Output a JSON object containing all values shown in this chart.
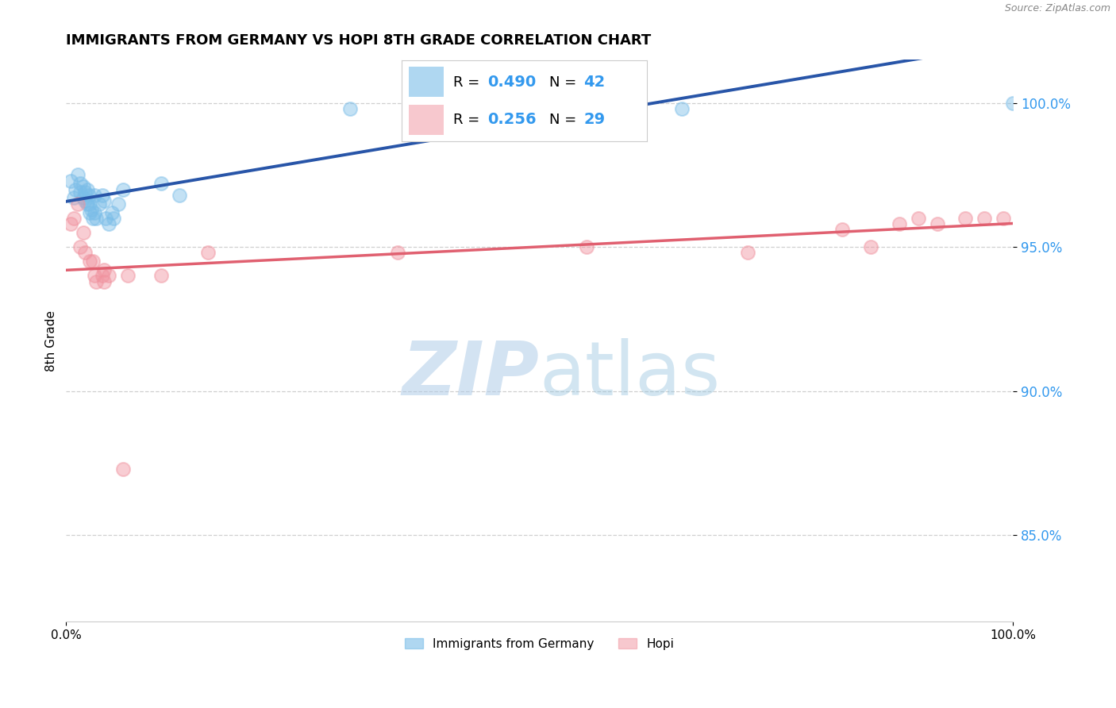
{
  "title": "IMMIGRANTS FROM GERMANY VS HOPI 8TH GRADE CORRELATION CHART",
  "source": "Source: ZipAtlas.com",
  "ylabel": "8th Grade",
  "ytick_labels": [
    "85.0%",
    "90.0%",
    "95.0%",
    "100.0%"
  ],
  "ytick_values": [
    0.85,
    0.9,
    0.95,
    1.0
  ],
  "xtick_labels": [
    "0.0%",
    "100.0%"
  ],
  "xtick_values": [
    0.0,
    1.0
  ],
  "xlim": [
    0.0,
    1.0
  ],
  "ylim": [
    0.82,
    1.015
  ],
  "blue_color": "#7ABDE8",
  "pink_color": "#F0929E",
  "blue_line_color": "#2855A8",
  "pink_line_color": "#E06070",
  "blue_R": "0.490",
  "blue_N": "42",
  "pink_R": "0.256",
  "pink_N": "29",
  "legend_labels": [
    "Immigrants from Germany",
    "Hopi"
  ],
  "watermark_zip": "ZIP",
  "watermark_atlas": "atlas",
  "blue_points_x": [
    0.005,
    0.008,
    0.01,
    0.012,
    0.015,
    0.015,
    0.018,
    0.018,
    0.02,
    0.02,
    0.022,
    0.022,
    0.024,
    0.025,
    0.025,
    0.027,
    0.028,
    0.03,
    0.03,
    0.032,
    0.035,
    0.038,
    0.04,
    0.042,
    0.045,
    0.048,
    0.05,
    0.055,
    0.06,
    0.1,
    0.12,
    0.3,
    0.38,
    0.4,
    0.42,
    0.45,
    0.48,
    0.5,
    0.55,
    0.6,
    0.65,
    1.0
  ],
  "blue_points_y": [
    0.973,
    0.967,
    0.97,
    0.975,
    0.972,
    0.969,
    0.967,
    0.971,
    0.969,
    0.966,
    0.97,
    0.965,
    0.968,
    0.965,
    0.962,
    0.963,
    0.96,
    0.968,
    0.962,
    0.96,
    0.965,
    0.968,
    0.966,
    0.96,
    0.958,
    0.962,
    0.96,
    0.965,
    0.97,
    0.972,
    0.968,
    0.998,
    0.998,
    0.998,
    0.998,
    0.998,
    0.998,
    0.998,
    0.998,
    0.998,
    0.998,
    1.0
  ],
  "pink_points_x": [
    0.005,
    0.008,
    0.012,
    0.015,
    0.018,
    0.02,
    0.025,
    0.028,
    0.03,
    0.032,
    0.038,
    0.04,
    0.04,
    0.045,
    0.06,
    0.065,
    0.1,
    0.15,
    0.35,
    0.55,
    0.72,
    0.82,
    0.85,
    0.88,
    0.9,
    0.92,
    0.95,
    0.97,
    0.99
  ],
  "pink_points_y": [
    0.958,
    0.96,
    0.965,
    0.95,
    0.955,
    0.948,
    0.945,
    0.945,
    0.94,
    0.938,
    0.94,
    0.938,
    0.942,
    0.94,
    0.873,
    0.94,
    0.94,
    0.948,
    0.948,
    0.95,
    0.948,
    0.956,
    0.95,
    0.958,
    0.96,
    0.958,
    0.96,
    0.96,
    0.96
  ],
  "figsize": [
    14.06,
    8.92
  ],
  "dpi": 100
}
